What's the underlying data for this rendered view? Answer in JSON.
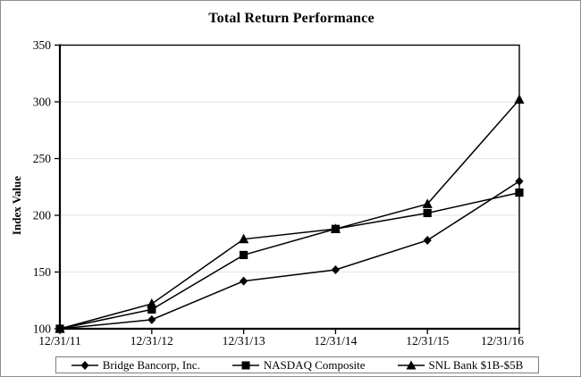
{
  "title": "Total Return Performance",
  "chart_data": {
    "type": "line",
    "title": "Total Return Performance",
    "xlabel": "",
    "ylabel": "Index Value",
    "categories": [
      "12/31/11",
      "12/31/12",
      "12/31/13",
      "12/31/14",
      "12/31/15",
      "12/31/16"
    ],
    "series": [
      {
        "name": "Bridge Bancorp, Inc.",
        "marker": "diamond",
        "values": [
          100,
          108,
          142,
          152,
          178,
          230
        ]
      },
      {
        "name": "NASDAQ Composite",
        "marker": "square",
        "values": [
          100,
          117,
          165,
          188,
          202,
          220
        ]
      },
      {
        "name": "SNL Bank $1B-$5B",
        "marker": "triangle",
        "values": [
          100,
          122,
          179,
          188,
          210,
          302
        ]
      }
    ],
    "ylim": [
      100,
      350
    ],
    "yticks": [
      100,
      150,
      200,
      250,
      300,
      350
    ],
    "grid": true,
    "legend_position": "bottom",
    "colors": {
      "series_line": "#000000",
      "marker_fill": "#000000",
      "grid_line": "#e8e8e8",
      "plot_border": "#000000",
      "outer_border": "#8f8f8f",
      "background": "#ffffff",
      "text": "#000000"
    }
  }
}
